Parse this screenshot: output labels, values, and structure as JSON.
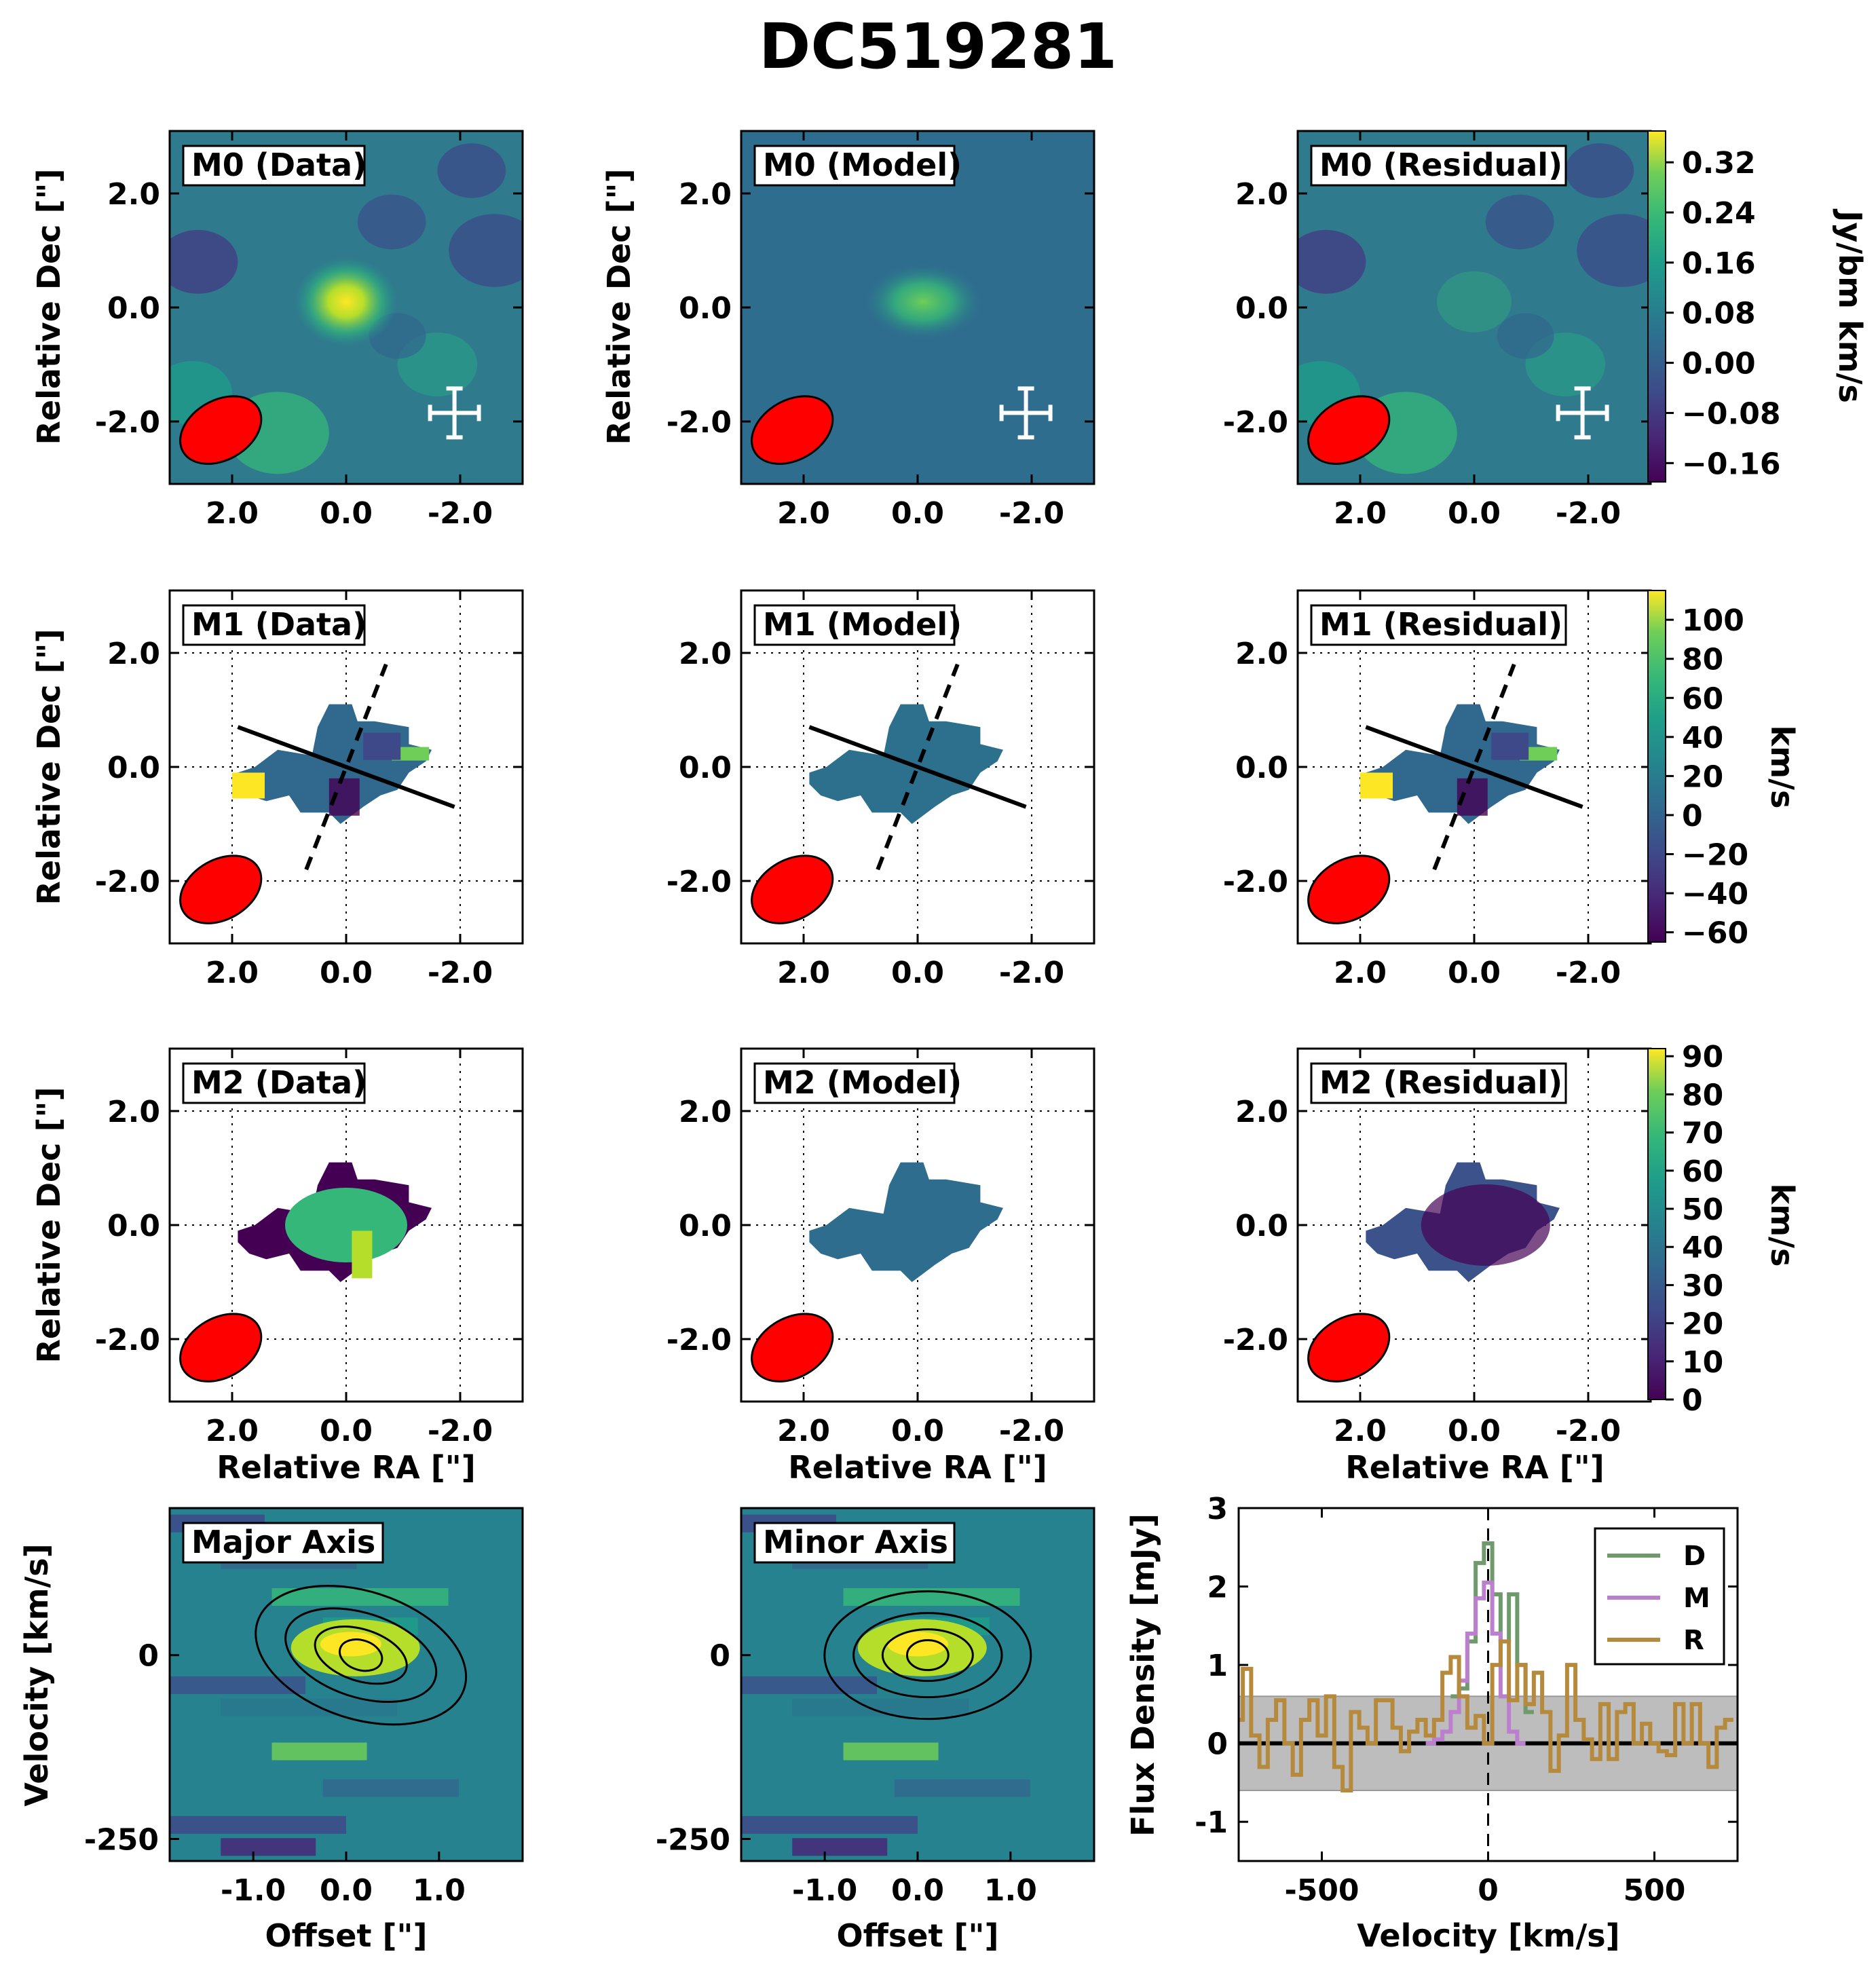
{
  "title": "DC519281",
  "colors": {
    "beam": "#ff0000",
    "series_D": "#6f9a6b",
    "series_M": "#bb7fce",
    "series_R": "#b58a3c",
    "noise_band": "#bdbdbd",
    "viridis_low": "#440154",
    "viridis_mid": "#21918c",
    "viridis_high": "#fde725"
  },
  "axes_text": {
    "dec_label": "Relative Dec [\"]",
    "ra_label": "Relative RA [\"]",
    "offset_label": "Offset [\"]",
    "velocity_label": "Velocity [km/s]",
    "flux_label": "Flux Density [mJy]",
    "spec_x_label": "Velocity [km/s]"
  },
  "ticks": {
    "dec": [
      "2.0",
      "0.0",
      "-2.0"
    ],
    "ra": [
      "2.0",
      "0.0",
      "-2.0"
    ],
    "offset": [
      "-1.0",
      "0.0",
      "1.0"
    ],
    "pv_velocity": [
      "0",
      "-250"
    ],
    "spec_y": [
      "3",
      "2",
      "1",
      "0",
      "-1"
    ],
    "spec_x": [
      "-500",
      "0",
      "500"
    ]
  },
  "panels": {
    "m0_data": "M0 (Data)",
    "m0_model": "M0 (Model)",
    "m0_resid": "M0 (Residual)",
    "m1_data": "M1 (Data)",
    "m1_model": "M1 (Model)",
    "m1_resid": "M1 (Residual)",
    "m2_data": "M2 (Data)",
    "m2_model": "M2 (Model)",
    "m2_resid": "M2 (Residual)",
    "pv_major": "Major Axis",
    "pv_minor": "Minor Axis"
  },
  "colorbars": {
    "m0": {
      "label": "Jy/bm km/s",
      "ticks": [
        "0.32",
        "0.24",
        "0.16",
        "0.08",
        "0.00",
        "−0.08",
        "−0.16"
      ]
    },
    "m1": {
      "label": "km/s",
      "ticks": [
        "100",
        "80",
        "60",
        "40",
        "20",
        "0",
        "−20",
        "−40",
        "−60"
      ]
    },
    "m2": {
      "label": "km/s",
      "ticks": [
        "90",
        "80",
        "70",
        "60",
        "50",
        "40",
        "30",
        "20",
        "10",
        "0"
      ]
    }
  },
  "legend": {
    "d": "D",
    "m": "M",
    "r": "R"
  },
  "chart_data": [
    {
      "type": "heatmap",
      "panels": [
        "M0 (Data)",
        "M0 (Model)",
        "M0 (Residual)"
      ],
      "colorbar_label": "Jy/bm km/s",
      "colorbar_range": [
        -0.19,
        0.37
      ],
      "xlabel": "",
      "ylabel": "Relative Dec [\"]",
      "xlim": [
        3.0,
        -3.0
      ],
      "ylim": [
        -3.0,
        3.0
      ],
      "peak_values": {
        "data": 0.36,
        "model": 0.16,
        "residual": 0.1
      },
      "peak_position": [
        0.0,
        0.1
      ]
    },
    {
      "type": "heatmap",
      "panels": [
        "M1 (Data)",
        "M1 (Model)",
        "M1 (Residual)"
      ],
      "colorbar_label": "km/s",
      "colorbar_range": [
        -65,
        115
      ],
      "xlabel": "",
      "ylabel": "Relative Dec [\"]",
      "xlim": [
        3.0,
        -3.0
      ],
      "ylim": [
        -3.0,
        3.0
      ],
      "major_axis_line": {
        "style": "solid",
        "from": [
          1.8,
          0.7
        ],
        "to": [
          -1.8,
          -0.7
        ]
      },
      "minor_axis_line": {
        "style": "dashed",
        "from": [
          0.7,
          -1.8
        ],
        "to": [
          -0.7,
          1.8
        ]
      }
    },
    {
      "type": "heatmap",
      "panels": [
        "M2 (Data)",
        "M2 (Model)",
        "M2 (Residual)"
      ],
      "colorbar_label": "km/s",
      "colorbar_range": [
        0,
        92
      ],
      "xlabel": "Relative RA [\"]",
      "ylabel": "Relative Dec [\"]",
      "xlim": [
        3.0,
        -3.0
      ],
      "ylim": [
        -3.0,
        3.0
      ]
    },
    {
      "type": "heatmap",
      "panels": [
        "Major Axis",
        "Minor Axis"
      ],
      "xlabel": "Offset [\"]",
      "ylabel": "Velocity [km/s]",
      "xlim": [
        -1.9,
        1.9
      ],
      "ylim": [
        -280,
        200
      ]
    },
    {
      "type": "line",
      "step": true,
      "xlabel": "Velocity [km/s]",
      "ylabel": "Flux Density [mJy]",
      "xlim": [
        -750,
        750
      ],
      "ylim": [
        -1.5,
        3.0
      ],
      "noise_band": [
        -0.6,
        0.6
      ],
      "zero_line": 0,
      "vline": 0,
      "legend_position": "top-right",
      "series": [
        {
          "name": "D",
          "x": [
            -100,
            -75,
            -50,
            -25,
            0,
            25,
            50,
            75,
            100,
            125
          ],
          "values": [
            0.6,
            0.7,
            1.3,
            2.3,
            2.55,
            1.9,
            1.3,
            1.9,
            1.0,
            0.4
          ]
        },
        {
          "name": "M",
          "x": [
            -175,
            -150,
            -125,
            -100,
            -75,
            -50,
            -25,
            0,
            25,
            50,
            75,
            100
          ],
          "values": [
            0,
            0.05,
            0.15,
            0.4,
            0.8,
            1.4,
            1.85,
            2.05,
            1.4,
            0.6,
            0.15,
            0
          ]
        },
        {
          "name": "R",
          "x": [
            -750,
            -725,
            -700,
            -675,
            -650,
            -625,
            -600,
            -575,
            -550,
            -525,
            -500,
            -475,
            -450,
            -425,
            -400,
            -375,
            -350,
            -325,
            -300,
            -275,
            -250,
            -225,
            -200,
            -175,
            -150,
            -125,
            -100,
            -75,
            -50,
            -25,
            0,
            25,
            50,
            75,
            100,
            125,
            150,
            175,
            200,
            225,
            250,
            275,
            300,
            325,
            350,
            375,
            400,
            425,
            450,
            475,
            500,
            525,
            550,
            575,
            600,
            625,
            650,
            675,
            700,
            725
          ],
          "values": [
            0.3,
            0.95,
            0.1,
            -0.3,
            0.3,
            0.55,
            0.0,
            -0.4,
            0.3,
            0.55,
            0.1,
            0.6,
            -0.3,
            -0.6,
            0.4,
            0.2,
            0.0,
            0.55,
            0.55,
            0.2,
            -0.1,
            0.15,
            0.3,
            0.1,
            0.3,
            0.9,
            1.1,
            0.6,
            0.2,
            0.35,
            0.0,
            1.0,
            1.3,
            0.55,
            1.0,
            0.5,
            0.9,
            0.4,
            -0.35,
            0.1,
            1.0,
            0.3,
            0.05,
            -0.2,
            0.5,
            -0.2,
            0.4,
            0.5,
            0.0,
            0.25,
            0.0,
            -0.1,
            -0.15,
            0.5,
            0.0,
            0.5,
            0.0,
            -0.3,
            0.2,
            0.3
          ]
        }
      ]
    }
  ]
}
